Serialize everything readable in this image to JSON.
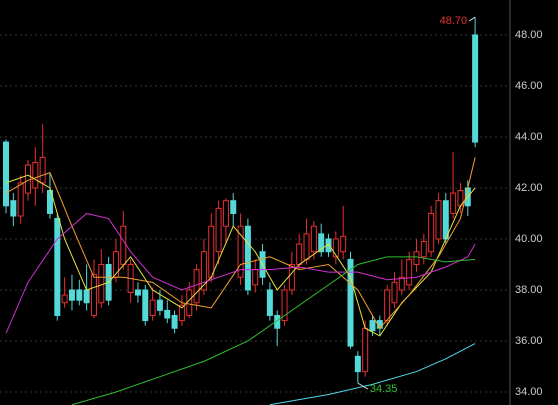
{
  "chart_data": {
    "type": "candlestick",
    "ylim": [
      33.49,
      49.37
    ],
    "yticks": [
      {
        "value": 34,
        "label": "34.00"
      },
      {
        "value": 36,
        "label": "36.00"
      },
      {
        "value": 38,
        "label": "38.00"
      },
      {
        "value": 40,
        "label": "40.00"
      },
      {
        "value": 42,
        "label": "42.00"
      },
      {
        "value": 44,
        "label": "44.00"
      },
      {
        "value": 46,
        "label": "46.00"
      },
      {
        "value": 48,
        "label": "48.00"
      }
    ],
    "grid": true,
    "up_color": "#e8302f",
    "down_color": "#54d8d8",
    "open": [
      43.8,
      41.5,
      40.9,
      41.8,
      42.0,
      42.2,
      41.9,
      40.8,
      37.5,
      38.0,
      38.0,
      38.0,
      37.0,
      37.5,
      39.0,
      38.5,
      39.0,
      37.9,
      38.0,
      38.0,
      37.0,
      37.6,
      37.2,
      37.0,
      36.8,
      37.0,
      37.5,
      38.0,
      38.5,
      39.5,
      40.5,
      41.5,
      38.5,
      40.5,
      38.2,
      39.5,
      38.0,
      37.0,
      36.8,
      38.0,
      39.0,
      39.2,
      39.5,
      40.2,
      40.0,
      39.3,
      39.5,
      39.2,
      35.4,
      34.8,
      36.8,
      36.8,
      36.8,
      37.5,
      38.0,
      38.2,
      39.0,
      39.3,
      39.5,
      40.0,
      41.5,
      41.0,
      41.3,
      42.0,
      48.0
    ],
    "high": [
      43.9,
      41.8,
      42.5,
      43.1,
      43.6,
      44.5,
      42.6,
      41.0,
      38.5,
      38.6,
      38.4,
      39.0,
      39.2,
      39.6,
      39.3,
      40.0,
      41.1,
      39.2,
      38.3,
      38.2,
      38.1,
      38.0,
      37.6,
      37.2,
      37.8,
      38.3,
      39.0,
      40.0,
      41.0,
      41.5,
      41.6,
      41.8,
      41.0,
      40.8,
      39.2,
      39.8,
      38.3,
      37.2,
      38.2,
      39.5,
      40.2,
      40.8,
      40.7,
      40.6,
      40.2,
      40.3,
      41.3,
      39.5,
      35.6,
      36.8,
      37.0,
      37.0,
      38.2,
      38.7,
      39.2,
      39.5,
      40.0,
      40.2,
      41.3,
      41.8,
      41.8,
      43.4,
      42.2,
      42.3,
      48.7
    ],
    "low": [
      41.0,
      40.5,
      40.6,
      41.5,
      41.3,
      41.8,
      40.8,
      36.8,
      37.3,
      37.2,
      37.4,
      37.2,
      36.9,
      37.3,
      37.4,
      38.3,
      38.8,
      37.5,
      37.5,
      36.6,
      36.8,
      37.0,
      36.7,
      36.3,
      36.6,
      36.9,
      37.2,
      37.8,
      38.3,
      39.0,
      39.8,
      40.5,
      38.2,
      37.8,
      37.9,
      38.2,
      36.8,
      35.8,
      36.6,
      37.8,
      38.8,
      39.0,
      39.2,
      39.3,
      39.3,
      39.0,
      39.2,
      35.7,
      34.35,
      34.6,
      36.2,
      36.2,
      36.6,
      37.3,
      37.8,
      38.0,
      38.7,
      39.0,
      39.3,
      39.8,
      39.8,
      40.8,
      41.0,
      40.9,
      43.6
    ],
    "close": [
      41.3,
      40.9,
      42.2,
      42.9,
      43.0,
      43.2,
      41.0,
      37.0,
      37.8,
      37.6,
      37.6,
      37.5,
      38.6,
      39.0,
      37.6,
      39.5,
      40.5,
      39.0,
      37.8,
      36.8,
      37.6,
      37.2,
      36.9,
      36.5,
      37.4,
      38.0,
      38.8,
      39.5,
      40.5,
      41.2,
      41.5,
      41.0,
      40.5,
      38.0,
      38.8,
      38.5,
      37.0,
      36.5,
      38.0,
      39.0,
      39.8,
      40.2,
      40.5,
      39.5,
      39.5,
      40.0,
      40.1,
      35.8,
      34.8,
      36.5,
      36.4,
      36.5,
      38.0,
      38.3,
      38.5,
      39.2,
      39.5,
      39.9,
      41.0,
      41.5,
      40.0,
      41.8,
      41.9,
      41.3,
      43.8
    ],
    "series": [
      {
        "color": "#e8e23a",
        "x": [
          0,
          3,
          6,
          8,
          11,
          14,
          17,
          20,
          24,
          28,
          31,
          34,
          37,
          40,
          44,
          47,
          49,
          51,
          54,
          58,
          60,
          62,
          64
        ],
        "values": [
          42.2,
          42.5,
          42.0,
          40.0,
          38.0,
          38.3,
          39.3,
          38.0,
          37.3,
          38.5,
          40.5,
          39.5,
          38.0,
          39.0,
          39.8,
          38.5,
          36.5,
          36.2,
          37.5,
          38.7,
          40.0,
          41.3,
          42.0
        ]
      },
      {
        "color": "#f0a030",
        "x": [
          0,
          3,
          6,
          9,
          12,
          16,
          20,
          24,
          28,
          32,
          36,
          40,
          44,
          48,
          51,
          55,
          59,
          62,
          64
        ],
        "values": [
          41.8,
          42.3,
          42.6,
          40.5,
          38.5,
          38.5,
          38.3,
          37.5,
          37.3,
          39.0,
          39.3,
          38.8,
          39.0,
          38.0,
          36.5,
          37.8,
          39.3,
          40.8,
          43.2
        ]
      },
      {
        "color": "#d030d0",
        "x": [
          0,
          3,
          7,
          11,
          14,
          17,
          20,
          24,
          28,
          32,
          36,
          40,
          44,
          48,
          52,
          56,
          60,
          63,
          64
        ],
        "values": [
          36.3,
          38.3,
          40.0,
          41.0,
          40.8,
          39.5,
          38.5,
          38.0,
          38.4,
          38.8,
          38.8,
          38.9,
          38.7,
          38.7,
          38.4,
          38.5,
          38.9,
          39.3,
          39.8
        ]
      },
      {
        "color": "#30c030",
        "x": [
          9,
          15,
          21,
          27,
          33,
          38,
          43,
          48,
          52,
          56,
          60,
          64
        ],
        "values": [
          33.5,
          34.0,
          34.6,
          35.2,
          36.0,
          37.0,
          38.0,
          39.0,
          39.3,
          39.3,
          39.1,
          39.2
        ]
      },
      {
        "color": "#50d8e8",
        "x": [
          36,
          44,
          50,
          56,
          60,
          64
        ],
        "values": [
          33.5,
          33.9,
          34.3,
          34.8,
          35.3,
          35.9
        ]
      }
    ],
    "annotations": [
      {
        "text": "48.70",
        "x": 64,
        "value": 48.7,
        "color": "#e8302f"
      },
      {
        "text": "34.35",
        "x": 48,
        "value": 34.35,
        "color": "#30c030"
      }
    ]
  }
}
